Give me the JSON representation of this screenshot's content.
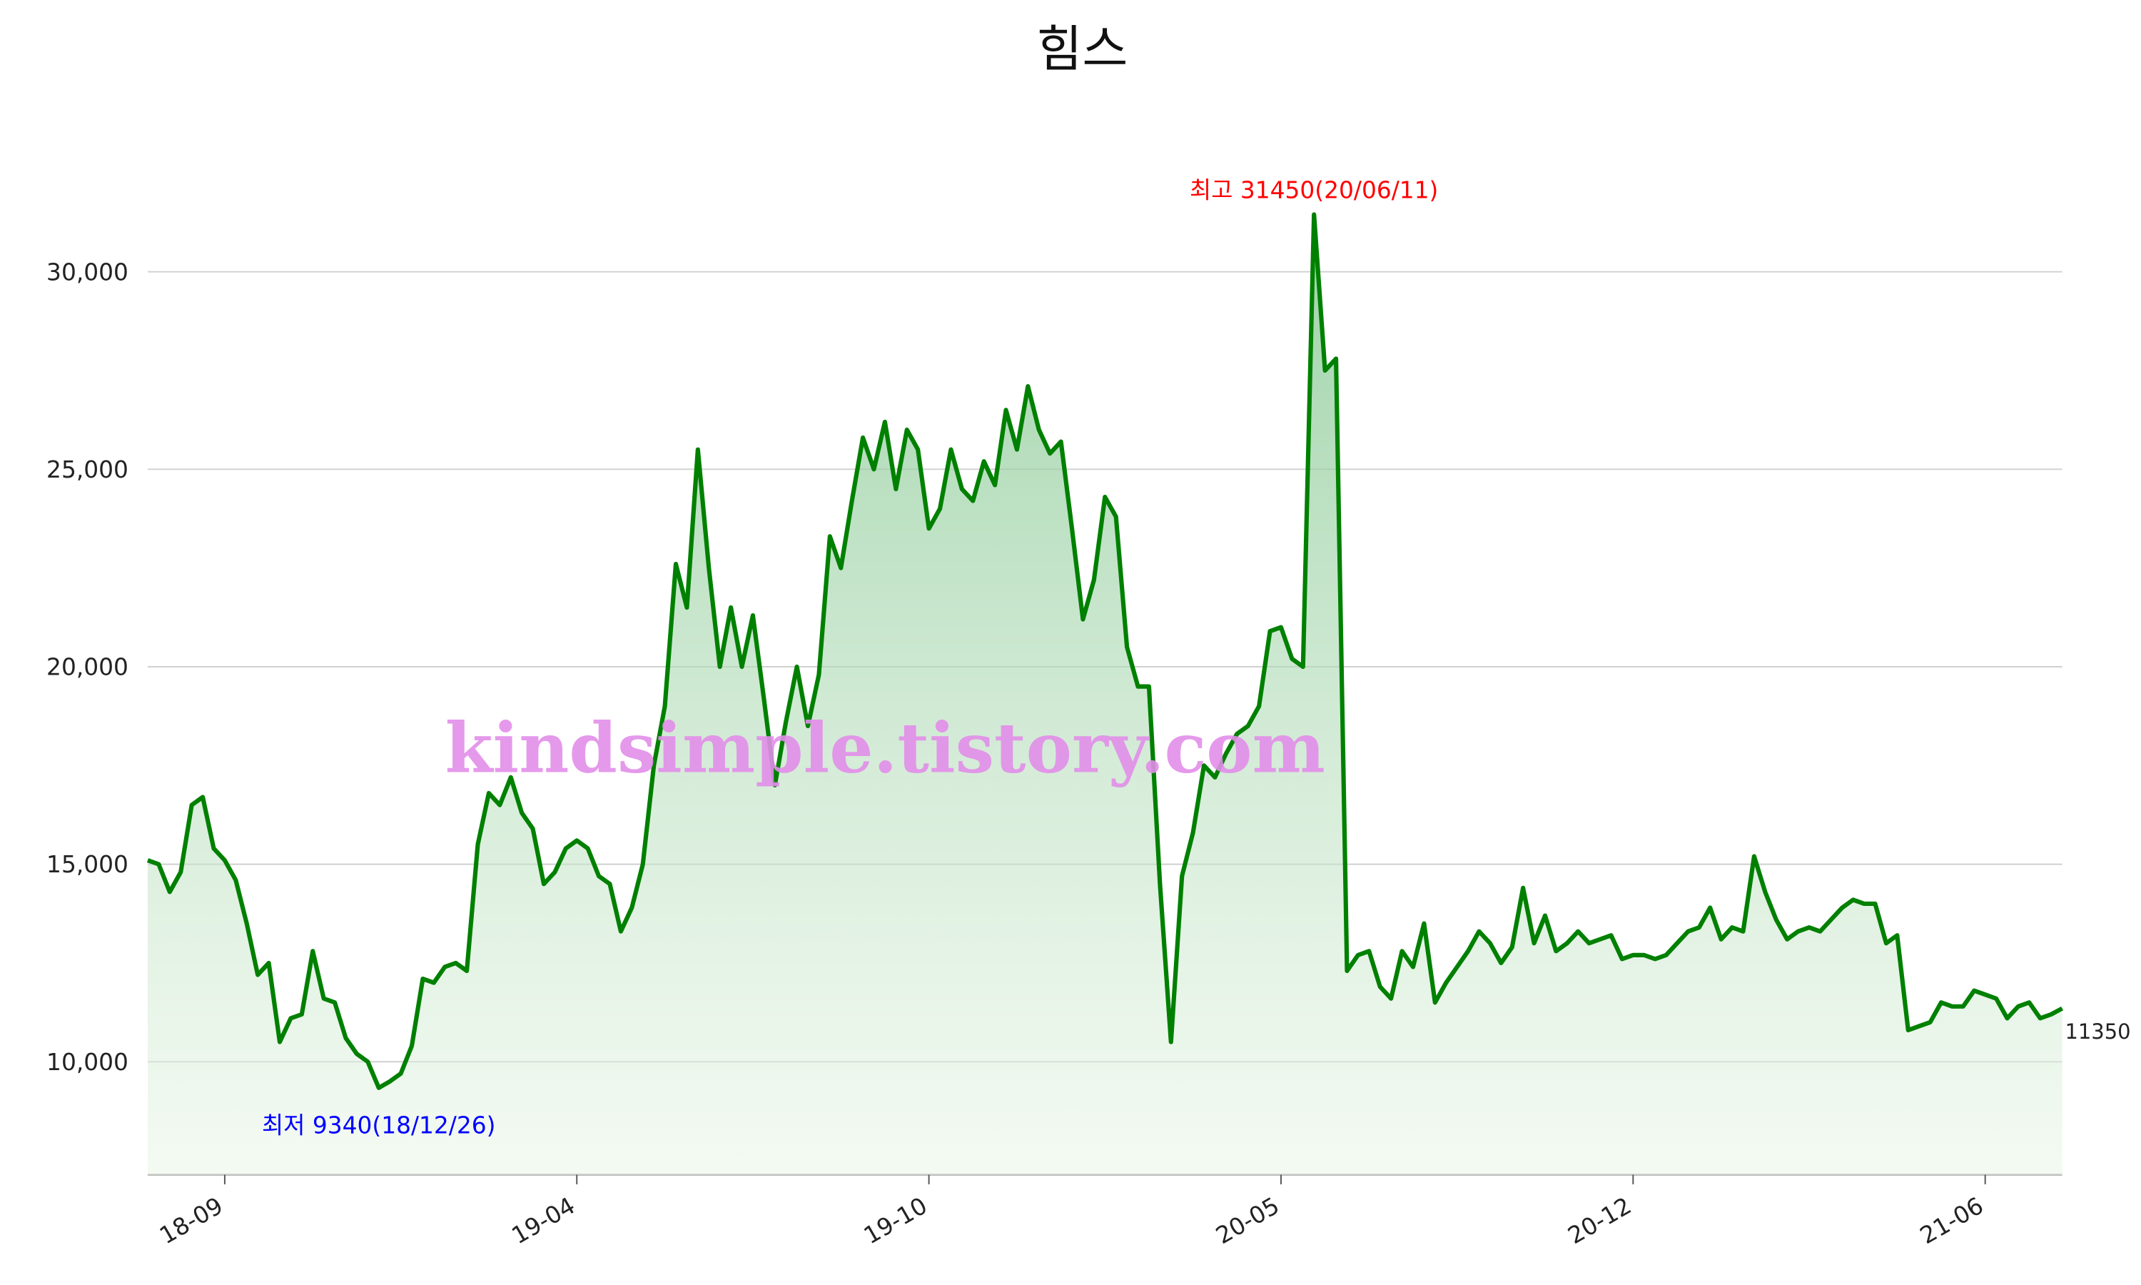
{
  "chart_data": {
    "type": "area_line",
    "title": "힘스",
    "watermark": "kindsimple.tistory.com",
    "color": "#008000",
    "categories": [
      null,
      null,
      null,
      null,
      null,
      null,
      null,
      "18-09",
      null,
      null,
      null,
      null,
      null,
      null,
      null,
      null,
      null,
      null,
      null,
      null,
      null,
      null,
      null,
      null,
      null,
      null,
      null,
      null,
      null,
      null,
      null,
      null,
      null,
      null,
      null,
      null,
      null,
      null,
      null,
      "19-04",
      null,
      null,
      null,
      null,
      null,
      null,
      null,
      null,
      null,
      null,
      null,
      null,
      null,
      null,
      null,
      null,
      null,
      null,
      null,
      null,
      null,
      null,
      null,
      null,
      null,
      null,
      null,
      null,
      null,
      null,
      null,
      "19-10",
      null,
      null,
      null,
      null,
      null,
      null,
      null,
      null,
      null,
      null,
      null,
      null,
      null,
      null,
      null,
      null,
      null,
      null,
      null,
      null,
      null,
      null,
      null,
      null,
      null,
      null,
      null,
      null,
      null,
      null,
      null,
      "20-05",
      null,
      null,
      null,
      null,
      null,
      null,
      null,
      null,
      null,
      null,
      null,
      null,
      null,
      null,
      null,
      null,
      null,
      null,
      null,
      null,
      null,
      null,
      null,
      null,
      null,
      null,
      null,
      null,
      null,
      null,
      null,
      "20-12",
      null,
      null,
      null,
      null,
      null,
      null,
      null,
      null,
      null,
      null,
      null,
      null,
      null,
      null,
      null,
      null,
      null,
      null,
      null,
      null,
      null,
      null,
      null,
      null,
      null,
      null,
      null,
      null,
      null,
      null,
      null,
      "21-06",
      null,
      null,
      null,
      null,
      null,
      null,
      null
    ],
    "values": [
      15100,
      15000,
      14300,
      14800,
      16500,
      16700,
      15400,
      15100,
      14600,
      13500,
      12200,
      12500,
      10500,
      11100,
      11200,
      12800,
      11600,
      11500,
      10600,
      10200,
      10000,
      9340,
      9500,
      9700,
      10400,
      12100,
      12000,
      12400,
      12500,
      12300,
      15500,
      16800,
      16500,
      17200,
      16300,
      15900,
      14500,
      14800,
      15400,
      15600,
      15400,
      14700,
      14500,
      13300,
      13900,
      15000,
      17500,
      19000,
      22600,
      21500,
      25500,
      22500,
      20000,
      21500,
      20000,
      21300,
      19200,
      17000,
      18600,
      20000,
      18500,
      19800,
      23300,
      22500,
      24200,
      25800,
      25000,
      26200,
      24500,
      26000,
      25500,
      23500,
      24000,
      25500,
      24500,
      24200,
      25200,
      24600,
      26500,
      25500,
      27100,
      26000,
      25400,
      25700,
      23500,
      21200,
      22200,
      24300,
      23800,
      20500,
      19500,
      19500,
      14500,
      10500,
      14700,
      15800,
      17500,
      17200,
      17800,
      18300,
      18500,
      19000,
      20900,
      21000,
      20200,
      20000,
      31450,
      27500,
      27800,
      12300,
      12700,
      12800,
      11900,
      11600,
      12800,
      12400,
      13500,
      11500,
      12000,
      12400,
      12800,
      13300,
      13000,
      12500,
      12900,
      14400,
      13000,
      13700,
      12800,
      13000,
      13300,
      13000,
      13100,
      13200,
      12600,
      12700,
      12700,
      12600,
      12700,
      13000,
      13300,
      13400,
      13900,
      13100,
      13400,
      13300,
      15200,
      14300,
      13600,
      13100,
      13300,
      13400,
      13300,
      13600,
      13900,
      14100,
      14000,
      14000,
      13000,
      13200,
      10800,
      10900,
      11000,
      11500,
      11400,
      11400,
      11800,
      11700,
      11600,
      11100,
      11400,
      11500,
      11100,
      11200,
      11350
    ],
    "ylim": [
      7140,
      33390
    ],
    "yticks": [
      {
        "value": 10000,
        "label": "10,000"
      },
      {
        "value": 15000,
        "label": "15,000"
      },
      {
        "value": 20000,
        "label": "20,000"
      },
      {
        "value": 25000,
        "label": "25,000"
      },
      {
        "value": 30000,
        "label": "30,000"
      }
    ],
    "grid": true,
    "annotations": [
      {
        "text": "최고 31450(20/06/11)",
        "color": "#ff0000"
      },
      {
        "text": "최저 9340(18/12/26)",
        "color": "#0000ff"
      }
    ]
  }
}
